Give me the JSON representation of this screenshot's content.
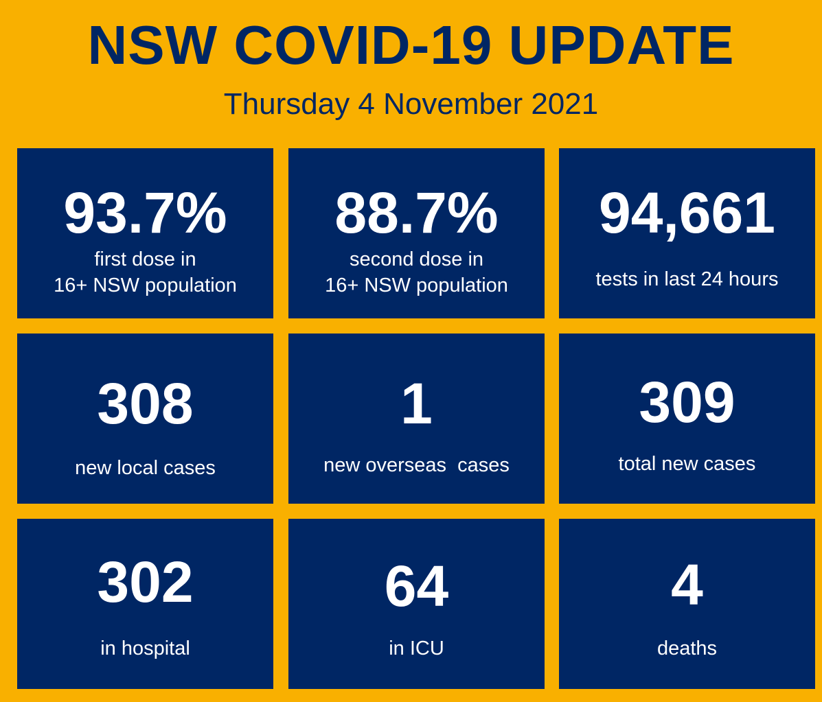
{
  "header": {
    "title": "NSW COVID-19 UPDATE",
    "date": "Thursday 4 November 2021"
  },
  "colors": {
    "background": "#f9b000",
    "tile": "#002664",
    "text_on_tile": "#ffffff"
  },
  "tiles": [
    {
      "value": "93.7%",
      "label": "first dose in\n16+ NSW population"
    },
    {
      "value": "88.7%",
      "label": "second dose in\n16+ NSW population"
    },
    {
      "value": "94,661",
      "label": "tests in last 24 hours"
    },
    {
      "value": "308",
      "label": "new local cases"
    },
    {
      "value": "1",
      "label": "new overseas  cases"
    },
    {
      "value": "309",
      "label": "total new cases"
    },
    {
      "value": "302",
      "label": "in hospital"
    },
    {
      "value": "64",
      "label": "in ICU"
    },
    {
      "value": "4",
      "label": "deaths"
    }
  ]
}
